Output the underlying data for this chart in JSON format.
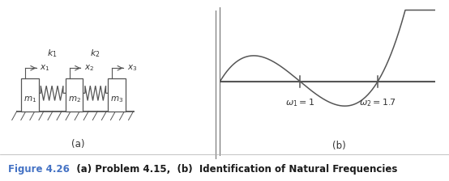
{
  "fig_width": 5.54,
  "fig_height": 2.24,
  "dpi": 100,
  "background_color": "#ffffff",
  "line_color": "#555555",
  "text_color": "#333333",
  "caption_color": "#4472c4",
  "caption_text": "Figure 4.26",
  "caption_rest": "   (a) Problem 4.15,  (b)  Identification of Natural Frequencies",
  "panel_a_label": "(a)",
  "panel_b_label": "(b)",
  "omega1": 1.0,
  "omega2": 1.7,
  "omega1_label": "$\\omega_1 = 1$",
  "omega2_label": "$\\omega_2 = 1.7$",
  "curve_color": "#555555",
  "divider_line_color": "#888888"
}
